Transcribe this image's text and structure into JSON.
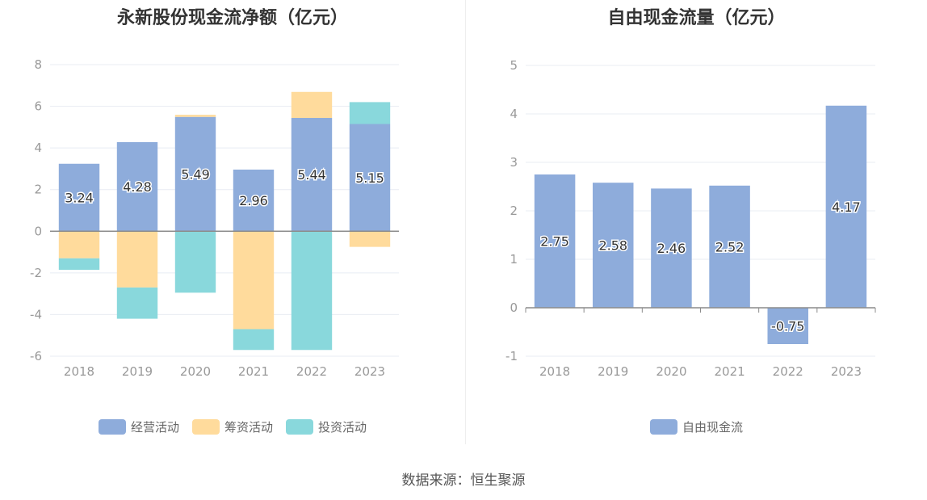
{
  "source": "数据来源：恒生聚源",
  "chart_data": [
    {
      "type": "bar",
      "stacked": true,
      "title": "永新股份现金流净额（亿元）",
      "categories": [
        "2018",
        "2019",
        "2020",
        "2021",
        "2022",
        "2023"
      ],
      "series": [
        {
          "name": "经营活动",
          "color": "#8eacdb",
          "values": [
            3.24,
            4.28,
            5.49,
            2.96,
            5.44,
            5.15
          ]
        },
        {
          "name": "筹资活动",
          "color": "#ffdb9c",
          "values": [
            -1.3,
            -2.7,
            0.1,
            -4.7,
            1.25,
            -0.75
          ]
        },
        {
          "name": "投资活动",
          "color": "#89d8dc",
          "values": [
            -0.55,
            -1.5,
            -2.95,
            -1.0,
            -5.7,
            1.05
          ]
        }
      ],
      "labels": [
        "3.24",
        "4.28",
        "5.49",
        "2.96",
        "5.44",
        "5.15"
      ],
      "ylim": [
        -6,
        8
      ],
      "yticks": [
        -6,
        -4,
        -2,
        0,
        2,
        4,
        6,
        8
      ],
      "grid": true,
      "legend": "bottom"
    },
    {
      "type": "bar",
      "title": "自由现金流量（亿元）",
      "categories": [
        "2018",
        "2019",
        "2020",
        "2021",
        "2022",
        "2023"
      ],
      "series": [
        {
          "name": "自由现金流",
          "color": "#8eacdb",
          "values": [
            2.75,
            2.58,
            2.46,
            2.52,
            -0.75,
            4.17
          ]
        }
      ],
      "labels": [
        "2.75",
        "2.58",
        "2.46",
        "2.52",
        "-0.75",
        "4.17"
      ],
      "ylim": [
        -1,
        5
      ],
      "yticks": [
        -1,
        0,
        1,
        2,
        3,
        4,
        5
      ],
      "grid": true,
      "legend": "bottom"
    }
  ]
}
